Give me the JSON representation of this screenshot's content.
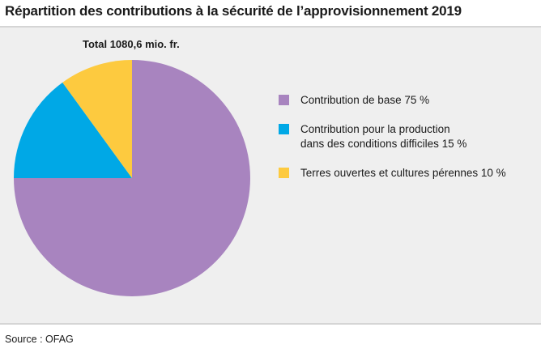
{
  "title": "Répartition des contributions à la sécurité de l’approvisionnement 2019",
  "total_label": "Total 1080,6 mio. fr.",
  "source": "Source : OFAG",
  "chart_data": {
    "type": "pie",
    "title": "Répartition des contributions à la sécurité de l’approvisionnement 2019",
    "unit": "%",
    "start_angle_deg": 0,
    "direction": "clockwise",
    "slices": [
      {
        "label_lines": [
          "Contribution de base 75 %"
        ],
        "value": 75,
        "color": "#a884bf"
      },
      {
        "label_lines": [
          "Contribution pour la production",
          "dans des conditions difficiles 15 %"
        ],
        "value": 15,
        "color": "#00a8e6"
      },
      {
        "label_lines": [
          "Terres ouvertes et cultures pérennes 10 %"
        ],
        "value": 10,
        "color": "#fdca3f"
      }
    ],
    "legend_position": "right"
  }
}
